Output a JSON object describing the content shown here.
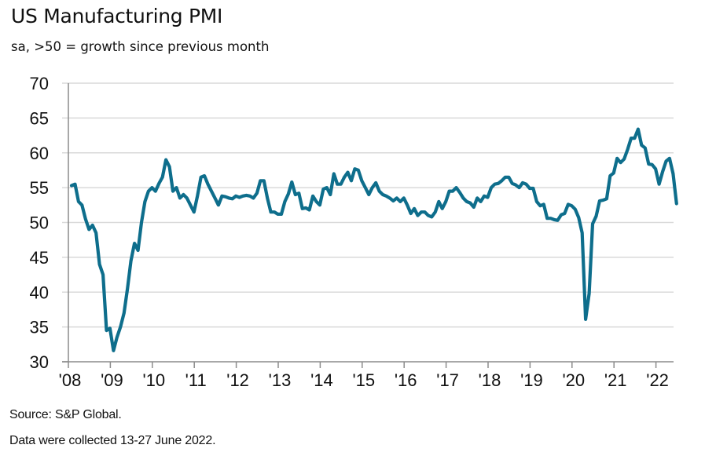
{
  "header": {
    "title": "US Manufacturing PMI",
    "subtitle": "sa, >50 = growth since previous month"
  },
  "footer": {
    "source": "Source: S&P Global.",
    "note": "Data were collected 13-27 June 2022."
  },
  "colors": {
    "line": "#0e6e8c",
    "grid": "#d9d9d9",
    "axis": "#8c8c8c"
  },
  "chart_data": {
    "type": "line",
    "title": "US Manufacturing PMI",
    "subtitle": "sa, >50 = growth since previous month",
    "xlabel": "",
    "ylabel": "",
    "ylim": [
      30,
      70
    ],
    "yticks": [
      30,
      35,
      40,
      45,
      50,
      55,
      60,
      65,
      70
    ],
    "xticks": [
      "'08",
      "'09",
      "'10",
      "'11",
      "'12",
      "'13",
      "'14",
      "'15",
      "'16",
      "'17",
      "'18",
      "'19",
      "'20",
      "'21",
      "'22"
    ],
    "x_start": "2008-01",
    "x_end": "2022-06",
    "frequency": "monthly",
    "grid": true,
    "legend": "none",
    "series": [
      {
        "name": "US Manufacturing PMI",
        "values": [
          55.3,
          55.5,
          53.0,
          52.5,
          50.5,
          49.0,
          49.6,
          48.5,
          44.0,
          42.5,
          34.5,
          34.8,
          31.6,
          33.5,
          35.0,
          37.0,
          40.5,
          44.5,
          47.0,
          46.0,
          50.0,
          53.0,
          54.5,
          55.0,
          54.5,
          55.6,
          56.5,
          59.0,
          58.0,
          54.5,
          55.0,
          53.5,
          54.0,
          53.5,
          52.5,
          51.5,
          53.8,
          56.5,
          56.7,
          55.5,
          54.5,
          53.5,
          52.5,
          53.8,
          53.7,
          53.5,
          53.4,
          53.8,
          53.6,
          53.8,
          53.9,
          53.8,
          53.5,
          54.2,
          56.0,
          56.0,
          53.5,
          51.5,
          51.5,
          51.2,
          51.2,
          53.0,
          54.1,
          55.8,
          54.0,
          54.2,
          52.0,
          52.1,
          51.8,
          53.8,
          53.0,
          52.5,
          54.8,
          55.0,
          54.0,
          57.0,
          55.5,
          55.5,
          56.5,
          57.2,
          56.0,
          57.7,
          57.5,
          56.0,
          55.0,
          54.0,
          55.0,
          55.7,
          54.5,
          54.0,
          53.8,
          53.5,
          53.1,
          53.5,
          53.0,
          53.5,
          52.5,
          51.3,
          52.0,
          51.0,
          51.5,
          51.5,
          51.0,
          50.8,
          51.5,
          53.0,
          52.0,
          53.0,
          54.5,
          54.5,
          55.0,
          54.3,
          53.5,
          53.0,
          52.8,
          52.2,
          53.5,
          53.0,
          53.8,
          53.6,
          55.0,
          55.5,
          55.6,
          56.0,
          56.5,
          56.5,
          55.6,
          55.4,
          55.0,
          55.7,
          55.5,
          54.9,
          54.9,
          53.0,
          52.4,
          52.6,
          50.6,
          50.6,
          50.4,
          50.3,
          51.1,
          51.3,
          52.6,
          52.4,
          51.9,
          50.7,
          48.5,
          36.1,
          39.8,
          49.8,
          50.9,
          53.1,
          53.2,
          53.4,
          56.7,
          57.1,
          59.2,
          58.6,
          59.1,
          60.5,
          62.1,
          62.1,
          63.4,
          61.1,
          60.7,
          58.4,
          58.3,
          57.7,
          55.5,
          57.3,
          58.8,
          59.2,
          57.0,
          52.7
        ]
      }
    ]
  }
}
